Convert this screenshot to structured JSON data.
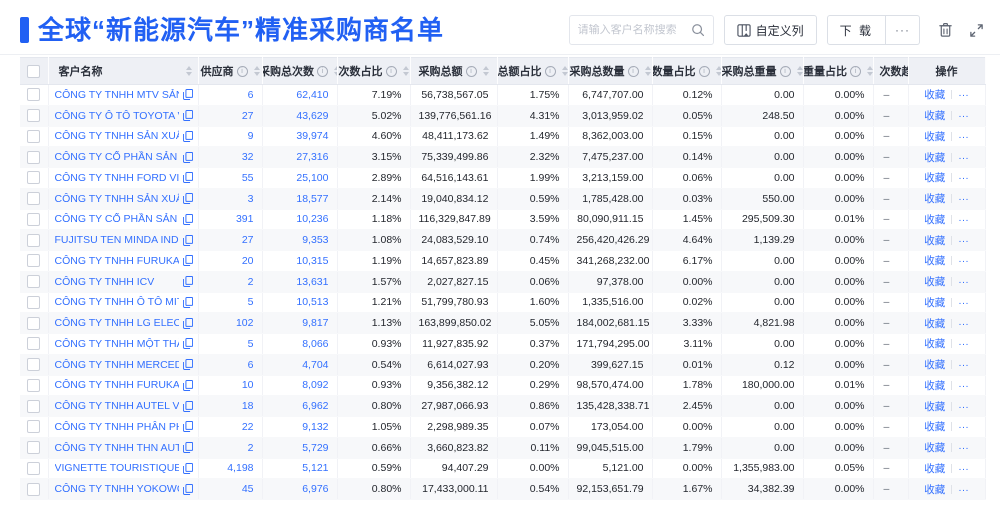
{
  "header": {
    "title": "全球“新能源汽车”精准采购商名单",
    "search_placeholder": "请输入客户名称搜索",
    "customize_columns_label": "自定义列",
    "download_label": "下 载",
    "download_more_label": "···"
  },
  "colors": {
    "accent_blue": "#2160f3",
    "link_blue": "#3370ff",
    "header_bg": "#eef0f5",
    "zebra_row": "#f7f8fa"
  },
  "table": {
    "columns": [
      {
        "label": "客户名称",
        "info": false,
        "sortable": true
      },
      {
        "label": "供应商",
        "info": true,
        "sortable": true
      },
      {
        "label": "采购总次数",
        "info": true,
        "sortable": true
      },
      {
        "label": "次数占比",
        "info": true,
        "sortable": true
      },
      {
        "label": "采购总额",
        "info": true,
        "sortable": true
      },
      {
        "label": "总额占比",
        "info": true,
        "sortable": true
      },
      {
        "label": "采购总数量",
        "info": true,
        "sortable": true
      },
      {
        "label": "数量占比",
        "info": true,
        "sortable": true
      },
      {
        "label": "采购总重量",
        "info": true,
        "sortable": true
      },
      {
        "label": "重量占比",
        "info": true,
        "sortable": true
      },
      {
        "label": "次数趋势",
        "info": false,
        "sortable": false
      },
      {
        "label": "操作",
        "info": false,
        "sortable": false
      }
    ],
    "action_favorite_label": "收藏",
    "action_more_label": "···",
    "rows": [
      {
        "name": "CÔNG TY TNHH MTV SẢN XUẤ...",
        "supplier": "6",
        "times": "62,410",
        "times_pct": "7.19%",
        "amount": "56,738,567.05",
        "amount_pct": "1.75%",
        "qty": "6,747,707.00",
        "qty_pct": "0.12%",
        "weight": "0.00",
        "weight_pct": "0.00%",
        "trend": "–"
      },
      {
        "name": "CÔNG TY Ô TÔ TOYOTA VIỆT ...",
        "supplier": "27",
        "times": "43,629",
        "times_pct": "5.02%",
        "amount": "139,776,561.16",
        "amount_pct": "4.31%",
        "qty": "3,013,959.02",
        "qty_pct": "0.05%",
        "weight": "248.50",
        "weight_pct": "0.00%",
        "trend": "–"
      },
      {
        "name": "CÔNG TY TNHH SẢN XUẤT VÀ ...",
        "supplier": "9",
        "times": "39,974",
        "times_pct": "4.60%",
        "amount": "48,411,173.62",
        "amount_pct": "1.49%",
        "qty": "8,362,003.00",
        "qty_pct": "0.15%",
        "weight": "0.00",
        "weight_pct": "0.00%",
        "trend": "–"
      },
      {
        "name": "CÔNG TY CỔ PHẦN SẢN XUẤT...",
        "supplier": "32",
        "times": "27,316",
        "times_pct": "3.15%",
        "amount": "75,339,499.86",
        "amount_pct": "2.32%",
        "qty": "7,475,237.00",
        "qty_pct": "0.14%",
        "weight": "0.00",
        "weight_pct": "0.00%",
        "trend": "–"
      },
      {
        "name": "CÔNG TY TNHH FORD VIỆT NAM",
        "supplier": "55",
        "times": "25,100",
        "times_pct": "2.89%",
        "amount": "64,516,143.61",
        "amount_pct": "1.99%",
        "qty": "3,213,159.00",
        "qty_pct": "0.06%",
        "weight": "0.00",
        "weight_pct": "0.00%",
        "trend": "–"
      },
      {
        "name": "CÔNG TY TNHH SẢN XUẤT VÀ ...",
        "supplier": "3",
        "times": "18,577",
        "times_pct": "2.14%",
        "amount": "19,040,834.12",
        "amount_pct": "0.59%",
        "qty": "1,785,428.00",
        "qty_pct": "0.03%",
        "weight": "550.00",
        "weight_pct": "0.00%",
        "trend": "–"
      },
      {
        "name": "CÔNG TY CỔ PHẦN SẢN XUẤT...",
        "supplier": "391",
        "times": "10,236",
        "times_pct": "1.18%",
        "amount": "116,329,847.89",
        "amount_pct": "3.59%",
        "qty": "80,090,911.15",
        "qty_pct": "1.45%",
        "weight": "295,509.30",
        "weight_pct": "0.01%",
        "trend": "–"
      },
      {
        "name": "FUJITSU TEN MINDA INDIA PVT...",
        "supplier": "27",
        "times": "9,353",
        "times_pct": "1.08%",
        "amount": "24,083,529.10",
        "amount_pct": "0.74%",
        "qty": "256,420,426.29",
        "qty_pct": "4.64%",
        "weight": "1,139.29",
        "weight_pct": "0.00%",
        "trend": "–"
      },
      {
        "name": "CÔNG TY TNHH FURUKAWA A...",
        "supplier": "20",
        "times": "10,315",
        "times_pct": "1.19%",
        "amount": "14,657,823.89",
        "amount_pct": "0.45%",
        "qty": "341,268,232.00",
        "qty_pct": "6.17%",
        "weight": "0.00",
        "weight_pct": "0.00%",
        "trend": "–"
      },
      {
        "name": "CÔNG TY TNHH ICV",
        "supplier": "2",
        "times": "13,631",
        "times_pct": "1.57%",
        "amount": "2,027,827.15",
        "amount_pct": "0.06%",
        "qty": "97,378.00",
        "qty_pct": "0.00%",
        "weight": "0.00",
        "weight_pct": "0.00%",
        "trend": "–"
      },
      {
        "name": "CÔNG TY TNHH Ô TÔ MITSUBI...",
        "supplier": "5",
        "times": "10,513",
        "times_pct": "1.21%",
        "amount": "51,799,780.93",
        "amount_pct": "1.60%",
        "qty": "1,335,516.00",
        "qty_pct": "0.02%",
        "weight": "0.00",
        "weight_pct": "0.00%",
        "trend": "–"
      },
      {
        "name": "CÔNG TY TNHH LG ELECTRON...",
        "supplier": "102",
        "times": "9,817",
        "times_pct": "1.13%",
        "amount": "163,899,850.02",
        "amount_pct": "5.05%",
        "qty": "184,002,681.15",
        "qty_pct": "3.33%",
        "weight": "4,821.98",
        "weight_pct": "0.00%",
        "trend": "–"
      },
      {
        "name": "CÔNG TY TNHH MỘT THÀNH V...",
        "supplier": "5",
        "times": "8,066",
        "times_pct": "0.93%",
        "amount": "11,927,835.92",
        "amount_pct": "0.37%",
        "qty": "171,794,295.00",
        "qty_pct": "3.11%",
        "weight": "0.00",
        "weight_pct": "0.00%",
        "trend": "–"
      },
      {
        "name": "CÔNG TY TNHH MERCEDES–B...",
        "supplier": "6",
        "times": "4,704",
        "times_pct": "0.54%",
        "amount": "6,614,027.93",
        "amount_pct": "0.20%",
        "qty": "399,627.15",
        "qty_pct": "0.01%",
        "weight": "0.12",
        "weight_pct": "0.00%",
        "trend": "–"
      },
      {
        "name": "CÔNG TY TNHH FURUKAWA A...",
        "supplier": "10",
        "times": "8,092",
        "times_pct": "0.93%",
        "amount": "9,356,382.12",
        "amount_pct": "0.29%",
        "qty": "98,570,474.00",
        "qty_pct": "1.78%",
        "weight": "180,000.00",
        "weight_pct": "0.01%",
        "trend": "–"
      },
      {
        "name": "CÔNG TY TNHH AUTEL VIỆT N...",
        "supplier": "18",
        "times": "6,962",
        "times_pct": "0.80%",
        "amount": "27,987,066.93",
        "amount_pct": "0.86%",
        "qty": "135,428,338.71",
        "qty_pct": "2.45%",
        "weight": "0.00",
        "weight_pct": "0.00%",
        "trend": "–"
      },
      {
        "name": "CÔNG TY TNHH PHÂN PHỐI T...",
        "supplier": "22",
        "times": "9,132",
        "times_pct": "1.05%",
        "amount": "2,298,989.35",
        "amount_pct": "0.07%",
        "qty": "173,054.00",
        "qty_pct": "0.00%",
        "weight": "0.00",
        "weight_pct": "0.00%",
        "trend": "–"
      },
      {
        "name": "CÔNG TY TNHH THN AUTOPAR...",
        "supplier": "2",
        "times": "5,729",
        "times_pct": "0.66%",
        "amount": "3,660,823.82",
        "amount_pct": "0.11%",
        "qty": "99,045,515.00",
        "qty_pct": "1.79%",
        "weight": "0.00",
        "weight_pct": "0.00%",
        "trend": "–"
      },
      {
        "name": "VIGNETTE TOURISTIQUE G UNI...",
        "supplier": "4,198",
        "times": "5,121",
        "times_pct": "0.59%",
        "amount": "94,407.29",
        "amount_pct": "0.00%",
        "qty": "5,121.00",
        "qty_pct": "0.00%",
        "weight": "1,355,983.00",
        "weight_pct": "0.05%",
        "trend": "–"
      },
      {
        "name": "CÔNG TY TNHH YOKOWO VIỆT...",
        "supplier": "45",
        "times": "6,976",
        "times_pct": "0.80%",
        "amount": "17,433,000.11",
        "amount_pct": "0.54%",
        "qty": "92,153,651.79",
        "qty_pct": "1.67%",
        "weight": "34,382.39",
        "weight_pct": "0.00%",
        "trend": "–"
      }
    ]
  }
}
